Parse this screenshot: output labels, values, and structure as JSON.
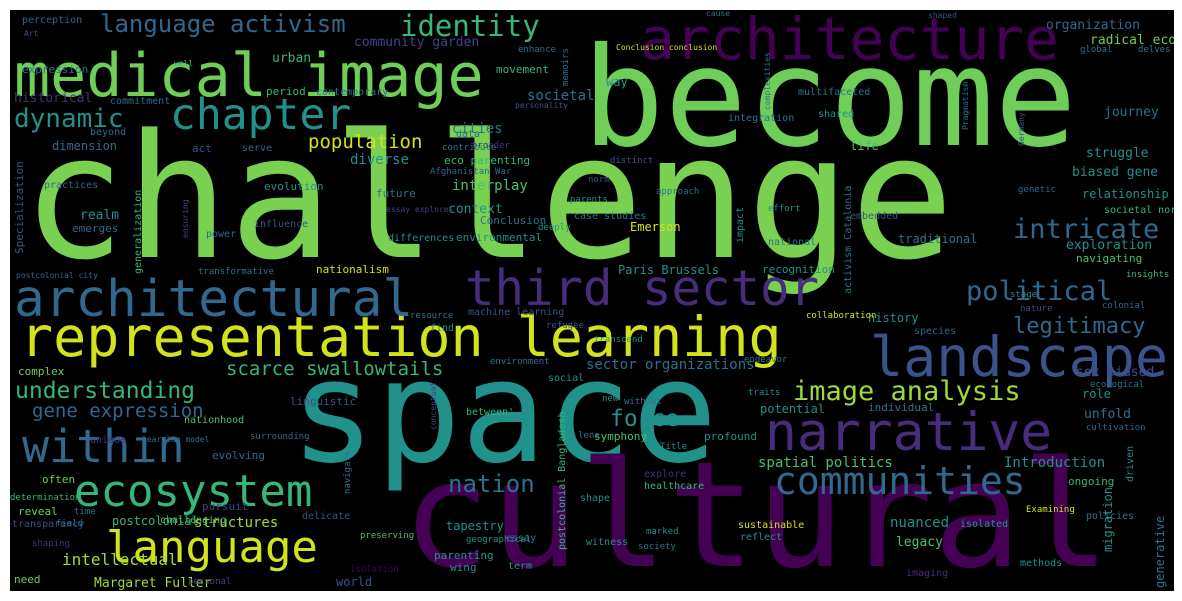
{
  "background": "#000000",
  "palette": {
    "dark_purple": "#440154",
    "indigo": "#3b528b",
    "blue": "#31688e",
    "teal": "#21918c",
    "green": "#35b779",
    "light_green": "#6ece58",
    "lime": "#7ad151",
    "yellow": "#d2e21b"
  },
  "words": [
    {
      "text": "challenge",
      "color": "#7ad151"
    },
    {
      "text": "become",
      "color": "#6ece58"
    },
    {
      "text": "space",
      "color": "#21918c"
    },
    {
      "text": "cultural",
      "color": "#440154"
    },
    {
      "text": "architecture",
      "color": "#440154"
    },
    {
      "text": "medical image",
      "color": "#6ece58"
    },
    {
      "text": "representation learning",
      "color": "#d2e21b"
    },
    {
      "text": "architectural",
      "color": "#31688e"
    },
    {
      "text": "landscape",
      "color": "#3b528b"
    },
    {
      "text": "narrative",
      "color": "#472d7b"
    },
    {
      "text": "third sector",
      "color": "#472d7b"
    },
    {
      "text": "chapter",
      "color": "#21918c"
    },
    {
      "text": "within",
      "color": "#31688e"
    },
    {
      "text": "ecosystem",
      "color": "#35b779"
    },
    {
      "text": "language",
      "color": "#d2e21b"
    },
    {
      "text": "communities",
      "color": "#31688e"
    },
    {
      "text": "identity",
      "color": "#35b779"
    },
    {
      "text": "language activism",
      "color": "#31688e"
    },
    {
      "text": "dynamic",
      "color": "#21918c"
    },
    {
      "text": "intricate",
      "color": "#31688e"
    },
    {
      "text": "political",
      "color": "#31688e"
    },
    {
      "text": "legitimacy",
      "color": "#31688e"
    },
    {
      "text": "image analysis",
      "color": "#a0da39"
    },
    {
      "text": "understanding",
      "color": "#35b779"
    },
    {
      "text": "scarce swallowtails",
      "color": "#35b779"
    },
    {
      "text": "gene expression",
      "color": "#31688e"
    },
    {
      "text": "nation",
      "color": "#2c728e"
    },
    {
      "text": "force",
      "color": "#21918c"
    },
    {
      "text": "population",
      "color": "#d2e21b"
    },
    {
      "text": "diverse",
      "color": "#21918c"
    },
    {
      "text": "cities",
      "color": "#2c728e"
    },
    {
      "text": "societal",
      "color": "#2c728e"
    },
    {
      "text": "interplay",
      "color": "#4ac16d"
    },
    {
      "text": "context",
      "color": "#21918c"
    },
    {
      "text": "structures",
      "color": "#a0da39"
    },
    {
      "text": "intellectual",
      "color": "#a0da39"
    },
    {
      "text": "Margaret Fuller",
      "color": "#a0da39"
    },
    {
      "text": "nuanced",
      "color": "#21918c"
    },
    {
      "text": "legacy",
      "color": "#4ac16d"
    },
    {
      "text": "spatial politics",
      "color": "#4ac16d"
    },
    {
      "text": "Introduction",
      "color": "#21918c"
    },
    {
      "text": "sector organizations",
      "color": "#2c728e"
    },
    {
      "text": "community garden",
      "color": "#414487"
    },
    {
      "text": "urban",
      "color": "#35b779"
    },
    {
      "text": "movement",
      "color": "#35b779"
    },
    {
      "text": "organization",
      "color": "#31688e"
    },
    {
      "text": "radical eco",
      "color": "#6ece58"
    },
    {
      "text": "journey",
      "color": "#2c728e"
    },
    {
      "text": "struggle",
      "color": "#21918c"
    },
    {
      "text": "biased gene",
      "color": "#21918c"
    },
    {
      "text": "relationship",
      "color": "#21918c"
    },
    {
      "text": "exploration",
      "color": "#21918c"
    },
    {
      "text": "traditional",
      "color": "#2c728e"
    },
    {
      "text": "history",
      "color": "#21918c"
    },
    {
      "text": "potential",
      "color": "#21918c"
    },
    {
      "text": "individual",
      "color": "#2c728e"
    },
    {
      "text": "sex biased",
      "color": "#3b528b"
    },
    {
      "text": "role",
      "color": "#21918c"
    },
    {
      "text": "unfold",
      "color": "#2c728e"
    },
    {
      "text": "profound",
      "color": "#21918c"
    },
    {
      "text": "symphony",
      "color": "#4ac16d"
    },
    {
      "text": "realm",
      "color": "#21918c"
    },
    {
      "text": "emerges",
      "color": "#31688e"
    },
    {
      "text": "environmental",
      "color": "#21918c"
    },
    {
      "text": "Emerson",
      "color": "#d2e21b"
    },
    {
      "text": "eco parenting",
      "color": "#35b779"
    },
    {
      "text": "future",
      "color": "#2c728e"
    },
    {
      "text": "evolution",
      "color": "#21918c"
    },
    {
      "text": "dimension",
      "color": "#31688e"
    },
    {
      "text": "historical",
      "color": "#472d7b"
    },
    {
      "text": "expression",
      "color": "#2c728e"
    },
    {
      "text": "perception",
      "color": "#31688e"
    },
    {
      "text": "nationalism",
      "color": "#d2e21b"
    },
    {
      "text": "Paris Brussels",
      "color": "#21918c"
    },
    {
      "text": "recognition",
      "color": "#21918c"
    },
    {
      "text": "navigating",
      "color": "#4ac16d"
    },
    {
      "text": "period",
      "color": "#35b779"
    },
    {
      "text": "contemporary",
      "color": "#2c728e"
    },
    {
      "text": "way",
      "color": "#21918c"
    },
    {
      "text": "multifaceted",
      "color": "#2c728e"
    },
    {
      "text": "shared",
      "color": "#21918c"
    },
    {
      "text": "life",
      "color": "#4ac16d"
    },
    {
      "text": "integration",
      "color": "#2c728e"
    },
    {
      "text": "commitment",
      "color": "#31688e"
    },
    {
      "text": "societal norms",
      "color": "#35b779"
    },
    {
      "text": "complex",
      "color": "#6ece58"
    },
    {
      "text": "linguistic",
      "color": "#3b528b"
    },
    {
      "text": "nationhood",
      "color": "#4ac16d"
    },
    {
      "text": "evolving",
      "color": "#31688e"
    },
    {
      "text": "often",
      "color": "#6ece58"
    },
    {
      "text": "determination",
      "color": "#35b779"
    },
    {
      "text": "reveal",
      "color": "#6ece58"
    },
    {
      "text": "transparency",
      "color": "#3b528b"
    },
    {
      "text": "shaping",
      "color": "#472d7b"
    },
    {
      "text": "need",
      "color": "#6ece58"
    },
    {
      "text": "postcolonial",
      "color": "#35b779"
    },
    {
      "text": "pursuit",
      "color": "#414487"
    },
    {
      "text": "delicate",
      "color": "#3b528b"
    },
    {
      "text": "tapestry",
      "color": "#21918c"
    },
    {
      "text": "parenting",
      "color": "#21918c"
    },
    {
      "text": "wing",
      "color": "#21918c"
    },
    {
      "text": "world",
      "color": "#3b528b"
    },
    {
      "text": "essay",
      "color": "#2c728e"
    },
    {
      "text": "term",
      "color": "#21918c"
    },
    {
      "text": "witness",
      "color": "#21918c"
    },
    {
      "text": "society",
      "color": "#2c728e"
    },
    {
      "text": "sustainable",
      "color": "#d2e21b"
    },
    {
      "text": "reflect",
      "color": "#21918c"
    },
    {
      "text": "imaging",
      "color": "#472d7b"
    },
    {
      "text": "methods",
      "color": "#21918c"
    },
    {
      "text": "policies",
      "color": "#2c728e"
    },
    {
      "text": "Examining",
      "color": "#d2e21b"
    },
    {
      "text": "isolated",
      "color": "#21918c"
    },
    {
      "text": "ongoing",
      "color": "#35b779"
    },
    {
      "text": "cultivation",
      "color": "#31688e"
    },
    {
      "text": "ecological",
      "color": "#2c728e"
    },
    {
      "text": "colonial",
      "color": "#31688e"
    },
    {
      "text": "insights",
      "color": "#35b779"
    },
    {
      "text": "stage",
      "color": "#21918c"
    },
    {
      "text": "species",
      "color": "#31688e"
    },
    {
      "text": "endeavor",
      "color": "#2c728e"
    },
    {
      "text": "traits",
      "color": "#21918c"
    },
    {
      "text": "collaboration",
      "color": "#d2e21b"
    },
    {
      "text": "transcend",
      "color": "#21918c"
    },
    {
      "text": "refugee",
      "color": "#3b528b"
    },
    {
      "text": "machine learning",
      "color": "#3b528b"
    },
    {
      "text": "resource",
      "color": "#2c728e"
    },
    {
      "text": "find",
      "color": "#21918c"
    },
    {
      "text": "challenging",
      "color": "#4ac16d"
    },
    {
      "text": "social",
      "color": "#21918c"
    },
    {
      "text": "environment",
      "color": "#2c728e"
    },
    {
      "text": "new",
      "color": "#21918c"
    },
    {
      "text": "without",
      "color": "#2c728e"
    },
    {
      "text": "Title",
      "color": "#21918c"
    },
    {
      "text": "explore",
      "color": "#472d7b"
    },
    {
      "text": "healthcare",
      "color": "#35b779"
    },
    {
      "text": "shape",
      "color": "#21918c"
    },
    {
      "text": "marked",
      "color": "#21918c"
    },
    {
      "text": "geographical",
      "color": "#21918c"
    },
    {
      "text": "preserving",
      "color": "#4ac16d"
    },
    {
      "text": "between'",
      "color": "#35b779"
    },
    {
      "text": "lens",
      "color": "#2c728e"
    },
    {
      "text": "transformative",
      "color": "#2c728e"
    },
    {
      "text": "power",
      "color": "#31688e"
    },
    {
      "text": "influence",
      "color": "#3b528b"
    },
    {
      "text": "differences",
      "color": "#21918c"
    },
    {
      "text": "deeply",
      "color": "#21918c"
    },
    {
      "text": "case studies",
      "color": "#2c728e"
    },
    {
      "text": "parents",
      "color": "#21918c"
    },
    {
      "text": "Conclusion",
      "color": "#2c728e"
    },
    {
      "text": "broader",
      "color": "#472d7b"
    },
    {
      "text": "data",
      "color": "#2c728e"
    },
    {
      "text": "contribute",
      "color": "#2c728e"
    },
    {
      "text": "Afghanistan War",
      "color": "#31688e"
    },
    {
      "text": "act",
      "color": "#3b528b"
    },
    {
      "text": "serve",
      "color": "#31688e"
    },
    {
      "text": "practices",
      "color": "#31688e"
    },
    {
      "text": "beyond",
      "color": "#31688e"
    },
    {
      "text": "distinct",
      "color": "#3b528b"
    },
    {
      "text": "norm",
      "color": "#3b528b"
    },
    {
      "text": "approach",
      "color": "#2c728e"
    },
    {
      "text": "embedded",
      "color": "#3b528b"
    },
    {
      "text": "effort",
      "color": "#21918c"
    },
    {
      "text": "national",
      "color": "#2c728e"
    },
    {
      "text": "impact",
      "color": "#21918c"
    },
    {
      "text": "genetic",
      "color": "#31688e"
    },
    {
      "text": "nature",
      "color": "#414487"
    },
    {
      "text": "cause",
      "color": "#2c728e"
    },
    {
      "text": "shaped",
      "color": "#3b528b"
    },
    {
      "text": "Conclusion conclusion",
      "color": "#d2e21b"
    },
    {
      "text": "memoirs",
      "color": "#2c728e"
    },
    {
      "text": "enhance",
      "color": "#2c728e"
    },
    {
      "text": "delves",
      "color": "#2c728e"
    },
    {
      "text": "global",
      "color": "#2c728e"
    },
    {
      "text": "well",
      "color": "#35b779"
    },
    {
      "text": "Art",
      "color": "#3b528b"
    },
    {
      "text": "personality",
      "color": "#3b528b"
    },
    {
      "text": "complexities",
      "color": "#2c728e"
    },
    {
      "text": "Germany",
      "color": "#3b528b"
    },
    {
      "text": "Pragmatism",
      "color": "#2c728e"
    },
    {
      "text": "Specialization",
      "color": "#3b528b"
    },
    {
      "text": "generalization",
      "color": "#35b779"
    },
    {
      "text": "postcolonial city",
      "color": "#31688e"
    },
    {
      "text": "activism Catalonia",
      "color": "#2c728e"
    },
    {
      "text": "migration",
      "color": "#21918c"
    },
    {
      "text": "driven",
      "color": "#21918c"
    },
    {
      "text": "generative",
      "color": "#2c728e"
    },
    {
      "text": "postcolonial Bangladesh",
      "color": "#35b779"
    },
    {
      "text": "navigate",
      "color": "#2c728e"
    },
    {
      "text": "essay explores",
      "color": "#414487"
    },
    {
      "text": "ensuring",
      "color": "#414487"
    },
    {
      "text": "surrounding",
      "color": "#31688e"
    },
    {
      "text": "unique",
      "color": "#472d7b"
    },
    {
      "text": "learning model",
      "color": "#2c728e"
    },
    {
      "text": "field",
      "color": "#2c728e"
    },
    {
      "text": "time",
      "color": "#2c728e"
    },
    {
      "text": "isolation",
      "color": "#440154"
    },
    {
      "text": "personal",
      "color": "#414487"
    },
    {
      "text": "conceptual",
      "color": "#414487"
    }
  ]
}
